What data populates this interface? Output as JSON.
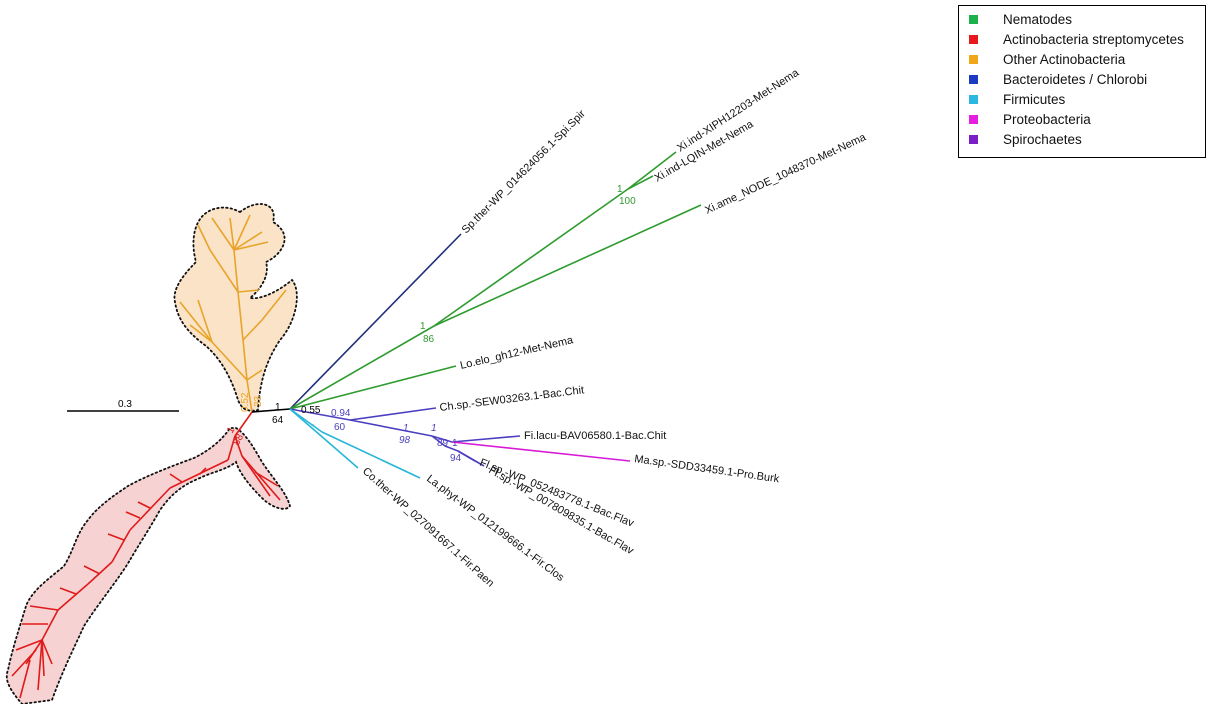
{
  "scale_bar": {
    "label": "0.3"
  },
  "legend": {
    "items": [
      {
        "label": "Nematodes",
        "color": "#1db14b"
      },
      {
        "label": "Actinobacteria streptomycetes",
        "color": "#e8191c"
      },
      {
        "label": "Other Actinobacteria",
        "color": "#f2a71b"
      },
      {
        "label": "Bacteroidetes / Chlorobi",
        "color": "#1a3bbf"
      },
      {
        "label": "Firmicutes",
        "color": "#2bb8e0"
      },
      {
        "label": "Proteobacteria",
        "color": "#e61ee0"
      },
      {
        "label": "Spirochaetes",
        "color": "#7a1fc6"
      }
    ]
  },
  "colors": {
    "nematodes": "#2e9b2e",
    "streptomycetes": "#e01a1a",
    "other_actino": "#e8a42a",
    "bacteroidetes": "#4a3fc0",
    "spirochaetes_branch": "#1f2f7a",
    "firmicutes": "#27b6d9",
    "proteobacteria": "#d61ad6",
    "orange_fill": "#fbe3c8",
    "red_fill": "#f6d2d2"
  },
  "leaves": {
    "spiro": "Sp.ther-WP_014624056.1-Spi.Spir",
    "xi1": "Xi.ind-XIPH12203-Met-Nema",
    "xi2": "Xi.ind-LQIN-Met-Nema",
    "xi3": "Xi.ame_NODE_1048370-Met-Nema",
    "lo": "Lo.elo_gh12-Met-Nema",
    "ch": "Ch.sp.-SEW03263.1-Bac.Chit",
    "fi": "Fi.lacu-BAV06580.1-Bac.Chit",
    "ma": "Ma.sp.-SDD33459.1-Pro.Burk",
    "fl1": "Fl.sp.-WP_052483778.1-Bac.Flav",
    "fl2": "Fl.sp.-WP_007809835.1-Bac.Flav",
    "la": "La.phyt-WP_012199666.1-Fir.Clos",
    "co": "Co.ther-WP_027091667.1-Fir.Paen"
  },
  "supports": {
    "nema_top_pp": "1",
    "nema_top_bs": "100",
    "nema_mid_pp": "1",
    "nema_mid_bs": "86",
    "root_pp": "1",
    "root_bs": "64",
    "bac_pp": "0.55",
    "bac_bs": "-",
    "ch_pp": "0.94",
    "ch_bs": "60",
    "mid_pp": "1",
    "mid_bs": "98",
    "fi_pp": "1",
    "fi_bs": "89",
    "fl_pp": "1",
    "fl_bs": "94",
    "orange_pp": "0.52",
    "orange_bs": "33",
    "red_pp": "1",
    "red_bs": "88"
  }
}
